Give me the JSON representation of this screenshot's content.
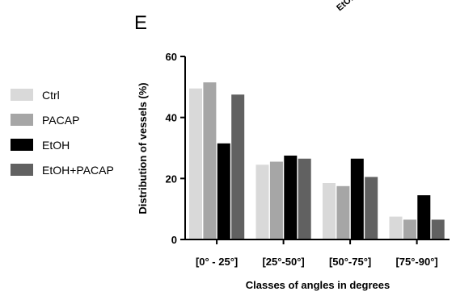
{
  "panel_letter": "E",
  "top_label": "EtOH+",
  "chart_data": {
    "type": "bar",
    "categories": [
      "[0° - 25°]",
      "[25°-50°]",
      "[50°-75°]",
      "[75°-90°]"
    ],
    "series": [
      {
        "name": "Ctrl",
        "color": "#d9d9d9",
        "values": [
          49.5,
          24.5,
          18.5,
          7.5
        ]
      },
      {
        "name": "PACAP",
        "color": "#a6a6a6",
        "values": [
          51.5,
          25.5,
          17.5,
          6.5
        ]
      },
      {
        "name": "EtOH",
        "color": "#000000",
        "values": [
          31.5,
          27.5,
          26.5,
          14.5
        ]
      },
      {
        "name": "EtOH+PACAP",
        "color": "#616161",
        "values": [
          47.5,
          26.5,
          20.5,
          6.5
        ]
      }
    ],
    "ylabel": "Distribution of vessels (%)",
    "xlabel": "Classes of angles in degrees",
    "ylim": [
      0,
      60
    ],
    "yticks": [
      0,
      20,
      40,
      60
    ],
    "legend_position": "left",
    "grid": false
  }
}
